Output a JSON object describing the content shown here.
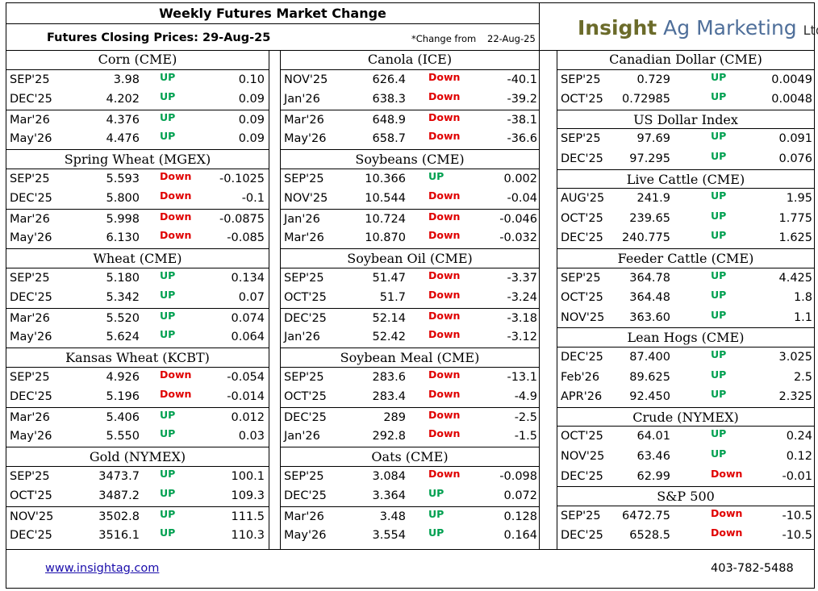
{
  "header": {
    "title": "Weekly Futures Market Change",
    "subtitle": "Futures Closing Prices:  29-Aug-25",
    "change_from_label": "*Change from",
    "change_from_date": "22-Aug-25"
  },
  "logo": {
    "part1": "Insight",
    "part2": "Ag Marketing",
    "part3": "Ltd."
  },
  "footer": {
    "website": "www.insightag.com",
    "phone": "403-782-5488"
  },
  "colors": {
    "up": "#00a050",
    "down": "#e00000",
    "logo_olive": "#6b6b2a",
    "logo_blue": "#4f6f9a"
  },
  "columns": [
    {
      "sections": [
        {
          "title": "Corn (CME)",
          "rows": [
            {
              "month": "SEP'25",
              "price": "3.98",
              "dir": "UP",
              "change": "0.10"
            },
            {
              "month": "DEC'25",
              "price": "4.202",
              "dir": "UP",
              "change": "0.09"
            },
            {
              "month": "Mar'26",
              "price": "4.376",
              "dir": "UP",
              "change": "0.09"
            },
            {
              "month": "May'26",
              "price": "4.476",
              "dir": "UP",
              "change": "0.09"
            }
          ]
        },
        {
          "title": "Spring Wheat (MGEX)",
          "rows": [
            {
              "month": "SEP'25",
              "price": "5.593",
              "dir": "Down",
              "change": "-0.1025"
            },
            {
              "month": "DEC'25",
              "price": "5.800",
              "dir": "Down",
              "change": "-0.1"
            },
            {
              "month": "Mar'26",
              "price": "5.998",
              "dir": "Down",
              "change": "-0.0875"
            },
            {
              "month": "May'26",
              "price": "6.130",
              "dir": "Down",
              "change": "-0.085"
            }
          ]
        },
        {
          "title": "Wheat (CME)",
          "rows": [
            {
              "month": "SEP'25",
              "price": "5.180",
              "dir": "UP",
              "change": "0.134"
            },
            {
              "month": "DEC'25",
              "price": "5.342",
              "dir": "UP",
              "change": "0.07"
            },
            {
              "month": "Mar'26",
              "price": "5.520",
              "dir": "UP",
              "change": "0.074"
            },
            {
              "month": "May'26",
              "price": "5.624",
              "dir": "UP",
              "change": "0.064"
            }
          ]
        },
        {
          "title": "Kansas Wheat (KCBT)",
          "rows": [
            {
              "month": "SEP'25",
              "price": "4.926",
              "dir": "Down",
              "change": "-0.054"
            },
            {
              "month": "DEC'25",
              "price": "5.196",
              "dir": "Down",
              "change": "-0.014"
            },
            {
              "month": "Mar'26",
              "price": "5.406",
              "dir": "UP",
              "change": "0.012"
            },
            {
              "month": "May'26",
              "price": "5.550",
              "dir": "UP",
              "change": "0.03"
            }
          ]
        },
        {
          "title": "Gold (NYMEX)",
          "rows": [
            {
              "month": "SEP'25",
              "price": "3473.7",
              "dir": "UP",
              "change": "100.1"
            },
            {
              "month": "OCT'25",
              "price": "3487.2",
              "dir": "UP",
              "change": "109.3"
            },
            {
              "month": "NOV'25",
              "price": "3502.8",
              "dir": "UP",
              "change": "111.5"
            },
            {
              "month": "DEC'25",
              "price": "3516.1",
              "dir": "UP",
              "change": "110.3"
            }
          ]
        }
      ]
    },
    {
      "sections": [
        {
          "title": "Canola (ICE)",
          "rows": [
            {
              "month": "NOV'25",
              "price": "626.4",
              "dir": "Down",
              "change": "-40.1"
            },
            {
              "month": "Jan'26",
              "price": "638.3",
              "dir": "Down",
              "change": "-39.2"
            },
            {
              "month": "Mar'26",
              "price": "648.9",
              "dir": "Down",
              "change": "-38.1"
            },
            {
              "month": "May'26",
              "price": "658.7",
              "dir": "Down",
              "change": "-36.6"
            }
          ]
        },
        {
          "title": "Soybeans (CME)",
          "rows": [
            {
              "month": "SEP'25",
              "price": "10.366",
              "dir": "UP",
              "change": "0.002"
            },
            {
              "month": "NOV'25",
              "price": "10.544",
              "dir": "Down",
              "change": "-0.04"
            },
            {
              "month": "Jan'26",
              "price": "10.724",
              "dir": "Down",
              "change": "-0.046"
            },
            {
              "month": "Mar'26",
              "price": "10.870",
              "dir": "Down",
              "change": "-0.032"
            }
          ]
        },
        {
          "title": "Soybean Oil (CME)",
          "rows": [
            {
              "month": "SEP'25",
              "price": "51.47",
              "dir": "Down",
              "change": "-3.37"
            },
            {
              "month": "OCT'25",
              "price": "51.7",
              "dir": "Down",
              "change": "-3.24"
            },
            {
              "month": "DEC'25",
              "price": "52.14",
              "dir": "Down",
              "change": "-3.18"
            },
            {
              "month": "Jan'26",
              "price": "52.42",
              "dir": "Down",
              "change": "-3.12"
            }
          ]
        },
        {
          "title": "Soybean Meal (CME)",
          "rows": [
            {
              "month": "SEP'25",
              "price": "283.6",
              "dir": "Down",
              "change": "-13.1"
            },
            {
              "month": "OCT'25",
              "price": "283.4",
              "dir": "Down",
              "change": "-4.9"
            },
            {
              "month": "DEC'25",
              "price": "289",
              "dir": "Down",
              "change": "-2.5"
            },
            {
              "month": "Jan'26",
              "price": "292.8",
              "dir": "Down",
              "change": "-1.5"
            }
          ]
        },
        {
          "title": "Oats (CME)",
          "rows": [
            {
              "month": "SEP'25",
              "price": "3.084",
              "dir": "Down",
              "change": "-0.098"
            },
            {
              "month": "DEC'25",
              "price": "3.364",
              "dir": "UP",
              "change": "0.072"
            },
            {
              "month": "Mar'26",
              "price": "3.48",
              "dir": "UP",
              "change": "0.128"
            },
            {
              "month": "May'26",
              "price": "3.554",
              "dir": "UP",
              "change": "0.164"
            }
          ]
        }
      ]
    },
    {
      "sections": [
        {
          "title": "Canadian Dollar (CME)",
          "rows": [
            {
              "month": "SEP'25",
              "price": "0.729",
              "dir": "UP",
              "change": "0.0049"
            },
            {
              "month": "OCT'25",
              "price": "0.72985",
              "dir": "UP",
              "change": "0.0048"
            }
          ]
        },
        {
          "title": "US Dollar Index",
          "rows": [
            {
              "month": "SEP'25",
              "price": "97.69",
              "dir": "UP",
              "change": "0.091"
            },
            {
              "month": "DEC'25",
              "price": "97.295",
              "dir": "UP",
              "change": "0.076"
            }
          ]
        },
        {
          "title": "Live Cattle (CME)",
          "rows": [
            {
              "month": "AUG'25",
              "price": "241.9",
              "dir": "UP",
              "change": "1.95"
            },
            {
              "month": "OCT'25",
              "price": "239.65",
              "dir": "UP",
              "change": "1.775"
            },
            {
              "month": "DEC'25",
              "price": "240.775",
              "dir": "UP",
              "change": "1.625"
            }
          ]
        },
        {
          "title": "Feeder Cattle (CME)",
          "rows": [
            {
              "month": "SEP'25",
              "price": "364.78",
              "dir": "UP",
              "change": "4.425"
            },
            {
              "month": "OCT'25",
              "price": "364.48",
              "dir": "UP",
              "change": "1.8"
            },
            {
              "month": "NOV'25",
              "price": "363.60",
              "dir": "UP",
              "change": "1.1"
            }
          ]
        },
        {
          "title": "Lean Hogs (CME)",
          "rows": [
            {
              "month": "DEC'25",
              "price": "87.400",
              "dir": "UP",
              "change": "3.025"
            },
            {
              "month": "Feb'26",
              "price": "89.625",
              "dir": "UP",
              "change": "2.5"
            },
            {
              "month": "APR'26",
              "price": "92.450",
              "dir": "UP",
              "change": "2.325"
            }
          ]
        },
        {
          "title": "Crude (NYMEX)",
          "rows": [
            {
              "month": "OCT'25",
              "price": "64.01",
              "dir": "UP",
              "change": "0.24"
            },
            {
              "month": "NOV'25",
              "price": "63.46",
              "dir": "UP",
              "change": "0.12"
            },
            {
              "month": "DEC'25",
              "price": "62.99",
              "dir": "Down",
              "change": "-0.01"
            }
          ]
        },
        {
          "title": "S&P 500",
          "rows": [
            {
              "month": "SEP'25",
              "price": "6472.75",
              "dir": "Down",
              "change": "-10.5"
            },
            {
              "month": "DEC'25",
              "price": "6528.5",
              "dir": "Down",
              "change": "-10.5"
            }
          ]
        }
      ]
    }
  ]
}
